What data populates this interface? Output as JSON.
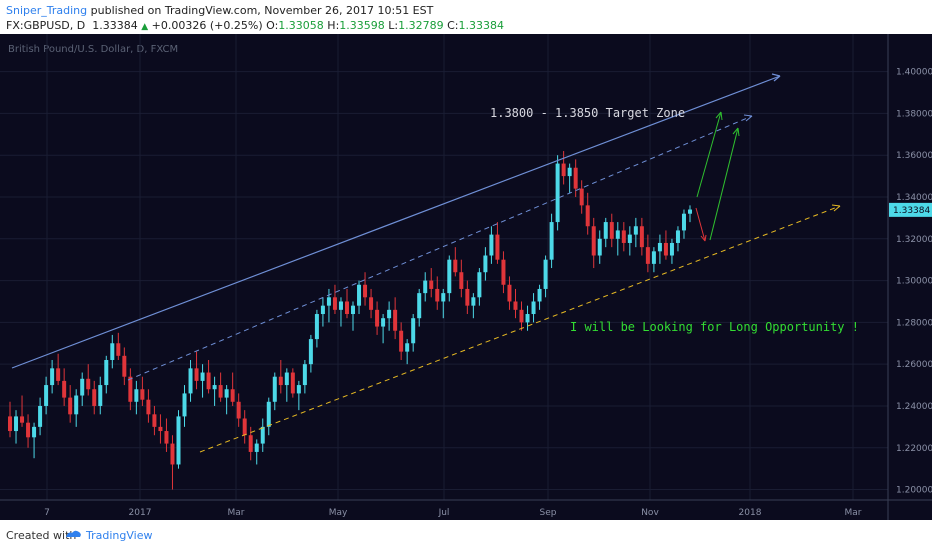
{
  "header": {
    "username": "Sniper_Trading",
    "published_text": "published on TradingView.com, November 26, 2017 10:51 EST",
    "symbol": "FX:GBPUSD, D",
    "last": "1.33384",
    "change_arrow": "▲",
    "change": "+0.00326 (+0.25%)",
    "o_label": "O:",
    "o": "1.33058",
    "h_label": "H:",
    "h": "1.33598",
    "l_label": "L:",
    "l": "1.32789",
    "c_label": "C:",
    "c": "1.33384"
  },
  "chart_watermark": "British Pound/U.S. Dollar, D, FXCM",
  "price_tag": "1.33384",
  "footer": {
    "created_with": "Created with",
    "brand": "TradingView"
  },
  "colors": {
    "background": "#0b0b1e",
    "bull": "#4dd9e8",
    "bear": "#e0353a",
    "upper_trendline": "#6f8fd6",
    "lower_trendline": "#e6b923",
    "green_note": "#33dd33",
    "text_white": "#d8d8e0"
  },
  "chart_data": {
    "type": "candlestick",
    "symbol": "GBPUSD",
    "timeframe": "D",
    "y_ticks": [
      "1.40000",
      "1.38000",
      "1.36000",
      "1.34000",
      "1.32000",
      "1.30000",
      "1.28000",
      "1.26000",
      "1.24000",
      "1.22000",
      "1.20000"
    ],
    "ylim": [
      1.195,
      1.418
    ],
    "x_labels": [
      "7",
      "2017",
      "Mar",
      "May",
      "Jul",
      "Sep",
      "Nov",
      "2018",
      "Mar"
    ],
    "annotations": [
      {
        "text": "1.3800 - 1.3850 Target Zone",
        "color": "#d8d8e0"
      },
      {
        "text": "I will be Looking for Long Opportunity !",
        "color": "#33dd33"
      }
    ],
    "candles": [
      [
        1.235,
        1.242,
        1.225,
        1.228
      ],
      [
        1.228,
        1.238,
        1.222,
        1.235
      ],
      [
        1.235,
        1.245,
        1.23,
        1.232
      ],
      [
        1.232,
        1.236,
        1.22,
        1.225
      ],
      [
        1.225,
        1.232,
        1.215,
        1.23
      ],
      [
        1.23,
        1.244,
        1.226,
        1.24
      ],
      [
        1.24,
        1.254,
        1.236,
        1.25
      ],
      [
        1.25,
        1.262,
        1.246,
        1.258
      ],
      [
        1.258,
        1.265,
        1.25,
        1.252
      ],
      [
        1.252,
        1.258,
        1.24,
        1.244
      ],
      [
        1.244,
        1.25,
        1.232,
        1.236
      ],
      [
        1.236,
        1.248,
        1.23,
        1.245
      ],
      [
        1.245,
        1.256,
        1.24,
        1.253
      ],
      [
        1.253,
        1.26,
        1.245,
        1.248
      ],
      [
        1.248,
        1.252,
        1.236,
        1.24
      ],
      [
        1.24,
        1.254,
        1.236,
        1.25
      ],
      [
        1.25,
        1.264,
        1.246,
        1.262
      ],
      [
        1.262,
        1.274,
        1.258,
        1.27
      ],
      [
        1.27,
        1.275,
        1.262,
        1.264
      ],
      [
        1.264,
        1.268,
        1.25,
        1.254
      ],
      [
        1.254,
        1.258,
        1.238,
        1.242
      ],
      [
        1.242,
        1.252,
        1.236,
        1.248
      ],
      [
        1.248,
        1.254,
        1.24,
        1.243
      ],
      [
        1.243,
        1.248,
        1.232,
        1.236
      ],
      [
        1.236,
        1.24,
        1.226,
        1.23
      ],
      [
        1.23,
        1.236,
        1.222,
        1.228
      ],
      [
        1.228,
        1.234,
        1.218,
        1.222
      ],
      [
        1.222,
        1.226,
        1.2,
        1.212
      ],
      [
        1.212,
        1.238,
        1.21,
        1.235
      ],
      [
        1.235,
        1.25,
        1.23,
        1.246
      ],
      [
        1.246,
        1.262,
        1.242,
        1.258
      ],
      [
        1.258,
        1.266,
        1.248,
        1.252
      ],
      [
        1.252,
        1.26,
        1.244,
        1.256
      ],
      [
        1.256,
        1.262,
        1.246,
        1.248
      ],
      [
        1.248,
        1.254,
        1.24,
        1.25
      ],
      [
        1.25,
        1.256,
        1.242,
        1.244
      ],
      [
        1.244,
        1.25,
        1.236,
        1.248
      ],
      [
        1.248,
        1.256,
        1.24,
        1.242
      ],
      [
        1.242,
        1.246,
        1.23,
        1.234
      ],
      [
        1.234,
        1.238,
        1.222,
        1.226
      ],
      [
        1.226,
        1.23,
        1.214,
        1.218
      ],
      [
        1.218,
        1.224,
        1.212,
        1.222
      ],
      [
        1.222,
        1.234,
        1.218,
        1.23
      ],
      [
        1.23,
        1.244,
        1.226,
        1.242
      ],
      [
        1.242,
        1.256,
        1.238,
        1.254
      ],
      [
        1.254,
        1.262,
        1.246,
        1.25
      ],
      [
        1.25,
        1.258,
        1.242,
        1.256
      ],
      [
        1.256,
        1.258,
        1.244,
        1.246
      ],
      [
        1.246,
        1.252,
        1.238,
        1.25
      ],
      [
        1.25,
        1.262,
        1.246,
        1.26
      ],
      [
        1.26,
        1.274,
        1.256,
        1.272
      ],
      [
        1.272,
        1.286,
        1.268,
        1.284
      ],
      [
        1.284,
        1.292,
        1.278,
        1.288
      ],
      [
        1.288,
        1.296,
        1.28,
        1.292
      ],
      [
        1.292,
        1.298,
        1.284,
        1.286
      ],
      [
        1.286,
        1.292,
        1.278,
        1.29
      ],
      [
        1.29,
        1.296,
        1.282,
        1.284
      ],
      [
        1.284,
        1.29,
        1.276,
        1.288
      ],
      [
        1.288,
        1.3,
        1.284,
        1.298
      ],
      [
        1.298,
        1.304,
        1.288,
        1.292
      ],
      [
        1.292,
        1.296,
        1.282,
        1.286
      ],
      [
        1.286,
        1.29,
        1.274,
        1.278
      ],
      [
        1.278,
        1.284,
        1.27,
        1.282
      ],
      [
        1.282,
        1.29,
        1.276,
        1.286
      ],
      [
        1.286,
        1.292,
        1.272,
        1.276
      ],
      [
        1.276,
        1.28,
        1.262,
        1.266
      ],
      [
        1.266,
        1.272,
        1.26,
        1.27
      ],
      [
        1.27,
        1.284,
        1.266,
        1.282
      ],
      [
        1.282,
        1.296,
        1.278,
        1.294
      ],
      [
        1.294,
        1.304,
        1.29,
        1.3
      ],
      [
        1.3,
        1.306,
        1.292,
        1.296
      ],
      [
        1.296,
        1.302,
        1.286,
        1.29
      ],
      [
        1.29,
        1.296,
        1.282,
        1.294
      ],
      [
        1.294,
        1.312,
        1.29,
        1.31
      ],
      [
        1.31,
        1.316,
        1.302,
        1.304
      ],
      [
        1.304,
        1.31,
        1.292,
        1.296
      ],
      [
        1.296,
        1.3,
        1.284,
        1.288
      ],
      [
        1.288,
        1.294,
        1.282,
        1.292
      ],
      [
        1.292,
        1.306,
        1.288,
        1.304
      ],
      [
        1.304,
        1.316,
        1.3,
        1.312
      ],
      [
        1.312,
        1.326,
        1.308,
        1.322
      ],
      [
        1.322,
        1.328,
        1.308,
        1.31
      ],
      [
        1.31,
        1.314,
        1.294,
        1.298
      ],
      [
        1.298,
        1.302,
        1.286,
        1.29
      ],
      [
        1.29,
        1.296,
        1.282,
        1.286
      ],
      [
        1.286,
        1.29,
        1.276,
        1.28
      ],
      [
        1.28,
        1.288,
        1.276,
        1.284
      ],
      [
        1.284,
        1.294,
        1.28,
        1.29
      ],
      [
        1.29,
        1.298,
        1.286,
        1.296
      ],
      [
        1.296,
        1.312,
        1.292,
        1.31
      ],
      [
        1.31,
        1.332,
        1.306,
        1.328
      ],
      [
        1.328,
        1.36,
        1.324,
        1.356
      ],
      [
        1.356,
        1.362,
        1.346,
        1.35
      ],
      [
        1.35,
        1.356,
        1.342,
        1.354
      ],
      [
        1.354,
        1.358,
        1.34,
        1.344
      ],
      [
        1.344,
        1.348,
        1.332,
        1.336
      ],
      [
        1.336,
        1.342,
        1.322,
        1.326
      ],
      [
        1.326,
        1.33,
        1.306,
        1.312
      ],
      [
        1.312,
        1.324,
        1.308,
        1.32
      ],
      [
        1.32,
        1.33,
        1.316,
        1.328
      ],
      [
        1.328,
        1.332,
        1.316,
        1.32
      ],
      [
        1.32,
        1.328,
        1.312,
        1.324
      ],
      [
        1.324,
        1.328,
        1.314,
        1.318
      ],
      [
        1.318,
        1.326,
        1.312,
        1.322
      ],
      [
        1.322,
        1.33,
        1.316,
        1.326
      ],
      [
        1.326,
        1.33,
        1.312,
        1.316
      ],
      [
        1.316,
        1.322,
        1.304,
        1.308
      ],
      [
        1.308,
        1.316,
        1.304,
        1.314
      ],
      [
        1.314,
        1.322,
        1.308,
        1.318
      ],
      [
        1.318,
        1.324,
        1.31,
        1.312
      ],
      [
        1.312,
        1.32,
        1.308,
        1.318
      ],
      [
        1.318,
        1.326,
        1.314,
        1.324
      ],
      [
        1.324,
        1.334,
        1.32,
        1.332
      ],
      [
        1.332,
        1.336,
        1.328,
        1.334
      ]
    ]
  }
}
